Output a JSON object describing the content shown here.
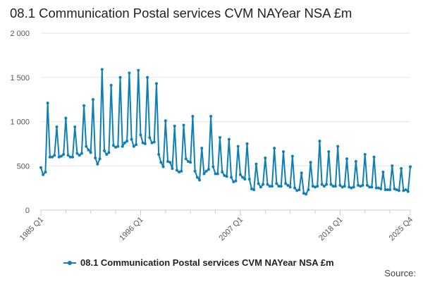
{
  "title": "08.1 Communication Postal services CVM NAYear NSA £m",
  "source_label": "Source:",
  "colors": {
    "series": "#0f7fb6",
    "grid": "#e6e6e6",
    "axis": "#cccccc"
  },
  "chart_data": {
    "type": "line",
    "title": "08.1 Communication Postal services CVM NAYear NSA £m",
    "xlabel": "",
    "ylabel": "",
    "ylim": [
      0,
      2000
    ],
    "yticks": [
      0,
      500,
      1000,
      1500,
      2000
    ],
    "ytick_labels": [
      "0",
      "500",
      "1 000",
      "1 500",
      "2 000"
    ],
    "xticks": [
      {
        "label": "1985 Q1",
        "index": 0
      },
      {
        "label": "1996 Q1",
        "index": 44
      },
      {
        "label": "2007 Q1",
        "index": 88
      },
      {
        "label": "2018 Q1",
        "index": 132
      },
      {
        "label": "2025 Q4",
        "index": 163
      }
    ],
    "legend": "bottom",
    "series": [
      {
        "name": "08.1 Communication Postal services CVM NAYear NSA £m",
        "start": "1985 Q1",
        "frequency": "quarterly",
        "values": [
          480,
          400,
          430,
          1210,
          600,
          600,
          620,
          940,
          600,
          610,
          630,
          1040,
          620,
          600,
          600,
          940,
          640,
          620,
          640,
          1180,
          720,
          680,
          650,
          1250,
          590,
          520,
          580,
          1590,
          670,
          630,
          650,
          1410,
          730,
          710,
          720,
          1500,
          720,
          760,
          780,
          1550,
          800,
          720,
          740,
          1580,
          850,
          760,
          750,
          1500,
          820,
          760,
          770,
          1430,
          630,
          540,
          490,
          1010,
          550,
          540,
          470,
          950,
          450,
          430,
          440,
          960,
          580,
          550,
          540,
          1060,
          440,
          370,
          340,
          700,
          410,
          440,
          460,
          1060,
          490,
          410,
          410,
          820,
          430,
          390,
          380,
          800,
          370,
          320,
          330,
          720,
          400,
          370,
          350,
          750,
          350,
          240,
          230,
          520,
          300,
          260,
          290,
          590,
          290,
          270,
          270,
          700,
          300,
          270,
          270,
          660,
          300,
          280,
          260,
          610,
          250,
          220,
          230,
          420,
          190,
          180,
          230,
          540,
          270,
          260,
          270,
          780,
          290,
          270,
          290,
          660,
          290,
          270,
          270,
          720,
          280,
          260,
          270,
          580,
          260,
          250,
          260,
          550,
          280,
          270,
          280,
          630,
          280,
          260,
          260,
          600,
          250,
          250,
          240,
          430,
          230,
          230,
          230,
          500,
          240,
          230,
          220,
          470,
          220,
          230,
          210,
          490
        ]
      }
    ]
  }
}
